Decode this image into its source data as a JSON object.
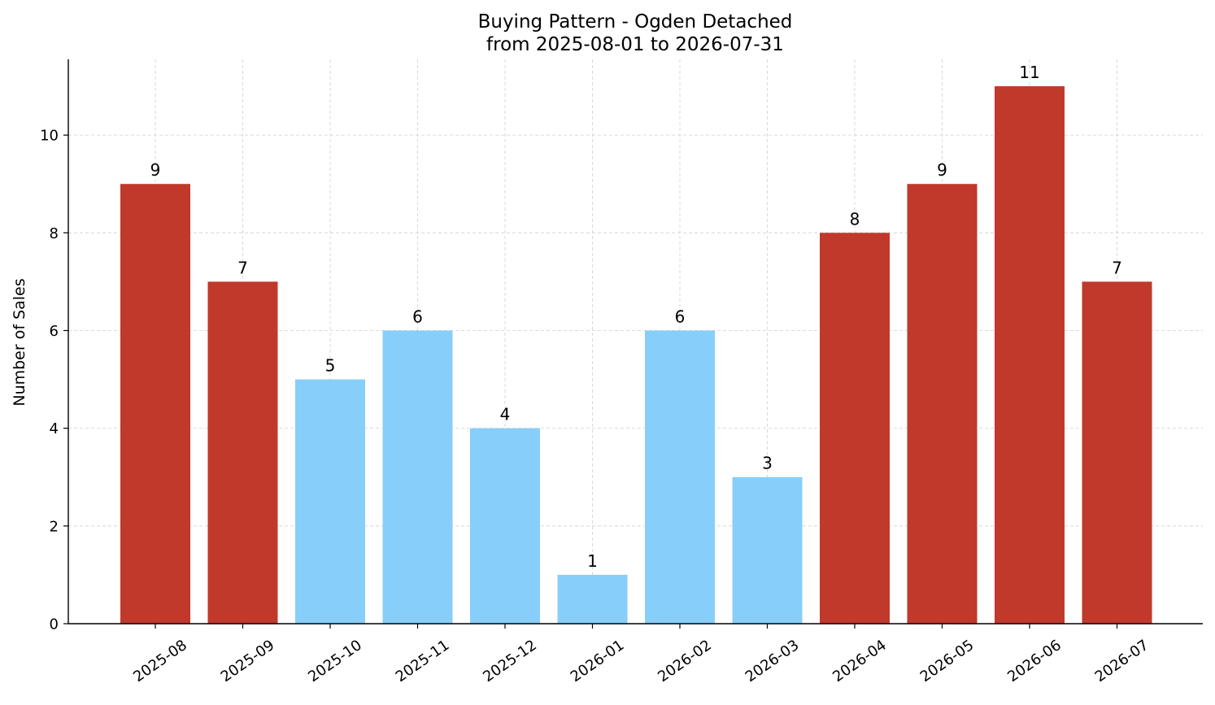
{
  "chart_data": {
    "type": "bar",
    "title": "Buying Pattern - Ogden Detached",
    "subtitle": "from 2025-08-01 to 2026-07-31",
    "xlabel": "",
    "ylabel": "Number of Sales",
    "categories": [
      "2025-08",
      "2025-09",
      "2025-10",
      "2025-11",
      "2025-12",
      "2026-01",
      "2026-02",
      "2026-03",
      "2026-04",
      "2026-05",
      "2026-06",
      "2026-07"
    ],
    "values": [
      9,
      7,
      5,
      6,
      4,
      1,
      6,
      3,
      8,
      9,
      11,
      7
    ],
    "bar_colors": [
      "#c0392b",
      "#c0392b",
      "#87cefa",
      "#87cefa",
      "#87cefa",
      "#87cefa",
      "#87cefa",
      "#87cefa",
      "#c0392b",
      "#c0392b",
      "#c0392b",
      "#c0392b"
    ],
    "yticks": [
      0,
      2,
      4,
      6,
      8,
      10
    ],
    "ylim": [
      0,
      11.55
    ],
    "grid": true,
    "legend": "none",
    "x_tick_rotation": "35 degrees"
  }
}
